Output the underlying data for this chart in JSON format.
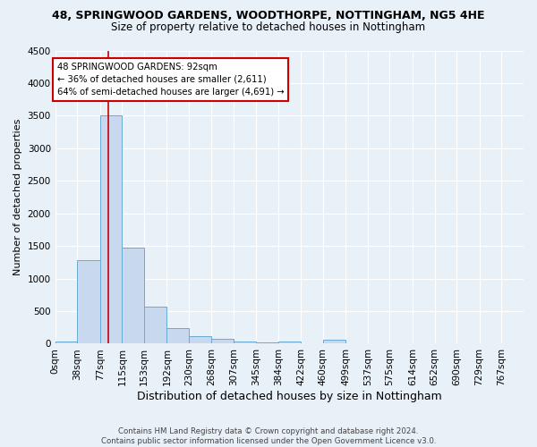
{
  "title1": "48, SPRINGWOOD GARDENS, WOODTHORPE, NOTTINGHAM, NG5 4HE",
  "title2": "Size of property relative to detached houses in Nottingham",
  "xlabel": "Distribution of detached houses by size in Nottingham",
  "ylabel": "Number of detached properties",
  "bar_labels": [
    "0sqm",
    "38sqm",
    "77sqm",
    "115sqm",
    "153sqm",
    "192sqm",
    "230sqm",
    "268sqm",
    "307sqm",
    "345sqm",
    "384sqm",
    "422sqm",
    "460sqm",
    "499sqm",
    "537sqm",
    "575sqm",
    "614sqm",
    "652sqm",
    "690sqm",
    "729sqm",
    "767sqm"
  ],
  "bar_values": [
    30,
    1280,
    3500,
    1480,
    570,
    240,
    120,
    80,
    40,
    25,
    30,
    5,
    60,
    0,
    0,
    0,
    0,
    0,
    0,
    0,
    0
  ],
  "bar_color": "#c8d9ef",
  "bar_edge_color": "#6aaad4",
  "background_color": "#e8f0f8",
  "plot_bg_color": "#e8f0f8",
  "grid_color": "#ffffff",
  "ylim": [
    0,
    4500
  ],
  "yticks": [
    0,
    500,
    1000,
    1500,
    2000,
    2500,
    3000,
    3500,
    4000,
    4500
  ],
  "property_sqm": 92,
  "bin_edges": [
    0,
    38,
    77,
    115,
    153,
    192,
    230,
    268,
    307,
    345,
    384,
    422,
    460,
    499,
    537,
    575,
    614,
    652,
    690,
    729,
    767
  ],
  "annotation_text": "48 SPRINGWOOD GARDENS: 92sqm\n← 36% of detached houses are smaller (2,611)\n64% of semi-detached houses are larger (4,691) →",
  "footer_text": "Contains HM Land Registry data © Crown copyright and database right 2024.\nContains public sector information licensed under the Open Government Licence v3.0.",
  "red_line_color": "#cc0000",
  "annotation_box_color": "#ffffff",
  "annotation_box_edge": "#cc0000",
  "title1_fontsize": 9,
  "title2_fontsize": 8.5,
  "xlabel_fontsize": 9,
  "ylabel_fontsize": 8,
  "tick_fontsize": 7.5,
  "footer_fontsize": 6.2,
  "footer_color": "#444444"
}
